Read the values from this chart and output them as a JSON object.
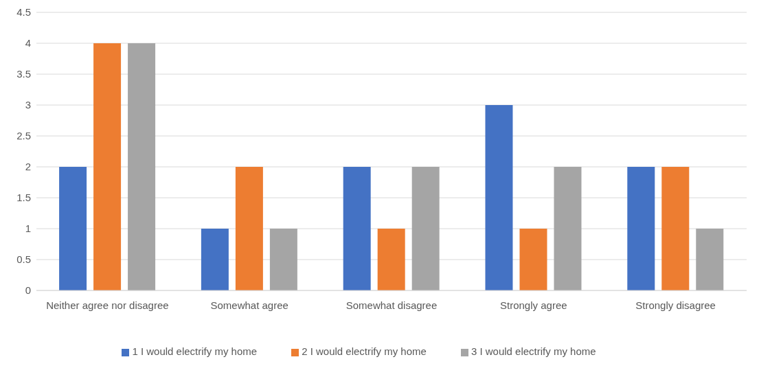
{
  "chart_data": {
    "type": "bar",
    "categories": [
      "Neither agree nor disagree",
      "Somewhat agree",
      "Somewhat disagree",
      "Strongly agree",
      "Strongly disagree"
    ],
    "series": [
      {
        "name": "1 I would electrify my home",
        "color": "#4472c4",
        "values": [
          2,
          1,
          2,
          3,
          2
        ]
      },
      {
        "name": "2 I would electrify my home",
        "color": "#ed7d31",
        "values": [
          4,
          2,
          1,
          1,
          2
        ]
      },
      {
        "name": "3 I would electrify my home",
        "color": "#a5a5a5",
        "values": [
          4,
          1,
          2,
          2,
          1
        ]
      }
    ],
    "ylim": [
      0,
      4.5
    ],
    "yticks": [
      0,
      0.5,
      1,
      1.5,
      2,
      2.5,
      3,
      3.5,
      4,
      4.5
    ],
    "grid": "y",
    "legend": "bottom"
  }
}
